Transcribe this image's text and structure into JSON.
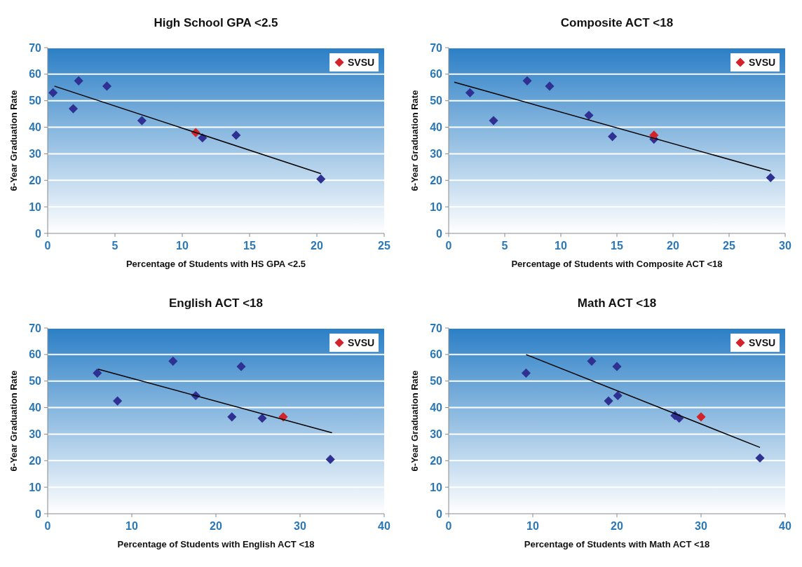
{
  "chart_data": [
    {
      "type": "scatter",
      "title": "High School GPA <2.5",
      "xlabel": "Percentage of Students with HS GPA <2.5",
      "ylabel": "6-Year Graduation Rate",
      "xlim": [
        0,
        25
      ],
      "xticks": [
        0,
        5,
        10,
        15,
        20,
        25
      ],
      "ylim": [
        0,
        70
      ],
      "yticks": [
        0,
        10,
        20,
        30,
        40,
        50,
        60,
        70
      ],
      "grid": "y",
      "legend": "top right",
      "series": [
        {
          "color": "#2e3192",
          "marker": "diamond",
          "x": [
            0.4,
            1.9,
            2.3,
            4.4,
            7,
            11.5,
            14,
            20.3
          ],
          "values": [
            53,
            47,
            57.5,
            55.5,
            42.5,
            36,
            37,
            20.5
          ]
        },
        {
          "name": "SVSU",
          "color": "#d2232a",
          "marker": "diamond",
          "x": [
            11
          ],
          "values": [
            38
          ]
        },
        {
          "type": "line",
          "color": "#000000",
          "x": [
            0.5,
            20.3
          ],
          "values": [
            55.5,
            22.5
          ]
        }
      ]
    },
    {
      "type": "scatter",
      "title": "Composite ACT <18",
      "xlabel": "Percentage of Students with Composite ACT <18",
      "ylabel": "6-Year Graduation Rate",
      "xlim": [
        0,
        30
      ],
      "xticks": [
        0,
        5,
        10,
        15,
        20,
        25,
        30
      ],
      "ylim": [
        0,
        70
      ],
      "yticks": [
        0,
        10,
        20,
        30,
        40,
        50,
        60,
        70
      ],
      "grid": "y",
      "legend": "top right",
      "series": [
        {
          "color": "#2e3192",
          "marker": "diamond",
          "x": [
            1.9,
            4,
            7,
            9,
            12.5,
            14.6,
            18.3,
            28.7
          ],
          "values": [
            53,
            42.5,
            57.5,
            55.5,
            44.5,
            36.5,
            35.5,
            21
          ]
        },
        {
          "name": "SVSU",
          "color": "#d2232a",
          "marker": "diamond",
          "x": [
            18.3
          ],
          "values": [
            37
          ]
        },
        {
          "type": "line",
          "color": "#000000",
          "x": [
            0.5,
            28.7
          ],
          "values": [
            57,
            23.5
          ]
        }
      ]
    },
    {
      "type": "scatter",
      "title": "English ACT <18",
      "xlabel": "Percentage of Students with English ACT <18",
      "ylabel": "6-Year Graduation Rate",
      "xlim": [
        0,
        40
      ],
      "xticks": [
        0,
        10,
        20,
        30,
        40
      ],
      "ylim": [
        0,
        70
      ],
      "yticks": [
        0,
        10,
        20,
        30,
        40,
        50,
        60,
        70
      ],
      "grid": "y",
      "legend": "top right",
      "series": [
        {
          "color": "#2e3192",
          "marker": "diamond",
          "x": [
            5.9,
            8.3,
            14.9,
            17.6,
            21.9,
            23,
            25.5,
            33.6
          ],
          "values": [
            53,
            42.5,
            57.5,
            44.5,
            36.5,
            55.5,
            36,
            20.5
          ]
        },
        {
          "name": "SVSU",
          "color": "#d2232a",
          "marker": "diamond",
          "x": [
            28
          ],
          "values": [
            36.5
          ]
        },
        {
          "type": "line",
          "color": "#000000",
          "x": [
            6,
            33.8
          ],
          "values": [
            54.5,
            30.5
          ]
        }
      ]
    },
    {
      "type": "scatter",
      "title": "Math ACT <18",
      "xlabel": "Percentage of Students with Math ACT <18",
      "ylabel": "6-Year Graduation Rate",
      "xlim": [
        0,
        40
      ],
      "xticks": [
        0,
        10,
        20,
        30,
        40
      ],
      "ylim": [
        0,
        70
      ],
      "yticks": [
        0,
        10,
        20,
        30,
        40,
        50,
        60,
        70
      ],
      "grid": "y",
      "legend": "top right",
      "series": [
        {
          "color": "#2e3192",
          "marker": "diamond",
          "x": [
            9.2,
            17,
            19,
            20,
            20.1,
            26.9,
            27.4,
            37
          ],
          "values": [
            53,
            57.5,
            42.5,
            55.5,
            44.5,
            37,
            36,
            21
          ]
        },
        {
          "name": "SVSU",
          "color": "#d2232a",
          "marker": "diamond",
          "x": [
            30
          ],
          "values": [
            36.5
          ]
        },
        {
          "type": "line",
          "color": "#000000",
          "x": [
            9.2,
            37
          ],
          "values": [
            60,
            25
          ]
        }
      ]
    }
  ]
}
